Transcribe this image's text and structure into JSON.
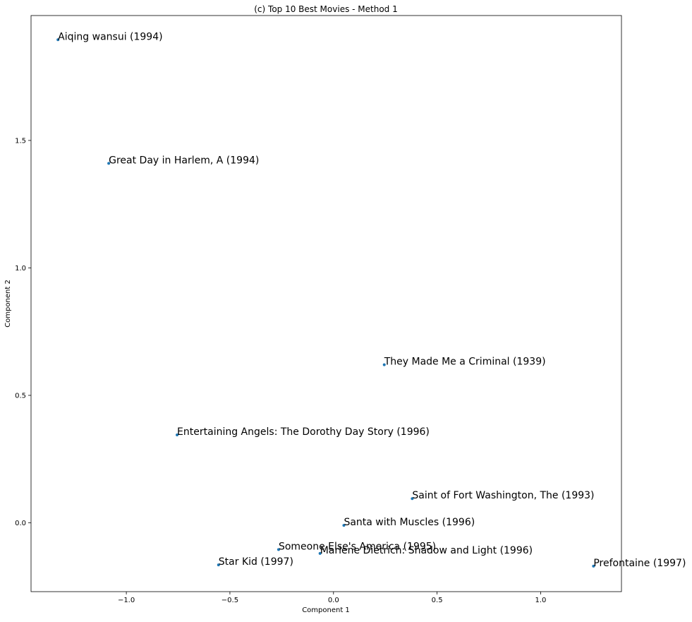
{
  "chart_data": {
    "type": "scatter",
    "title": "(c) Top 10 Best Movies - Method 1",
    "xlabel": "Component 1",
    "ylabel": "Component 2",
    "xlim": [
      -1.46,
      1.39
    ],
    "ylim": [
      -0.27,
      1.99
    ],
    "xticks": [
      -1.0,
      -0.5,
      0.0,
      0.5,
      1.0
    ],
    "xtick_labels": [
      "−1.0",
      "−0.5",
      "0.0",
      "0.5",
      "1.0"
    ],
    "yticks": [
      0.0,
      0.5,
      1.0,
      1.5
    ],
    "ytick_labels": [
      "0.0",
      "0.5",
      "1.0",
      "1.5"
    ],
    "grid": false,
    "marker_color": "#1f77b4",
    "points": [
      {
        "x": -1.33,
        "y": 1.895,
        "label": "Aiqing wansui (1994)"
      },
      {
        "x": -1.085,
        "y": 1.41,
        "label": "Great Day in Harlem, A (1994)"
      },
      {
        "x": 0.245,
        "y": 0.62,
        "label": "They Made Me a Criminal (1939)"
      },
      {
        "x": -0.755,
        "y": 0.345,
        "label": "Entertaining Angels: The Dorothy Day Story (1996)"
      },
      {
        "x": 0.38,
        "y": 0.095,
        "label": "Saint of Fort Washington, The (1993)"
      },
      {
        "x": 0.05,
        "y": -0.01,
        "label": "Santa with Muscles (1996)"
      },
      {
        "x": -0.265,
        "y": -0.105,
        "label": "Someone Else's America (1995)"
      },
      {
        "x": -0.065,
        "y": -0.12,
        "label": "Marlene Dietrich: Shadow and Light (1996)"
      },
      {
        "x": -0.555,
        "y": -0.165,
        "label": "Star Kid (1997)"
      },
      {
        "x": 1.255,
        "y": -0.17,
        "label": "Prefontaine (1997)"
      }
    ]
  }
}
